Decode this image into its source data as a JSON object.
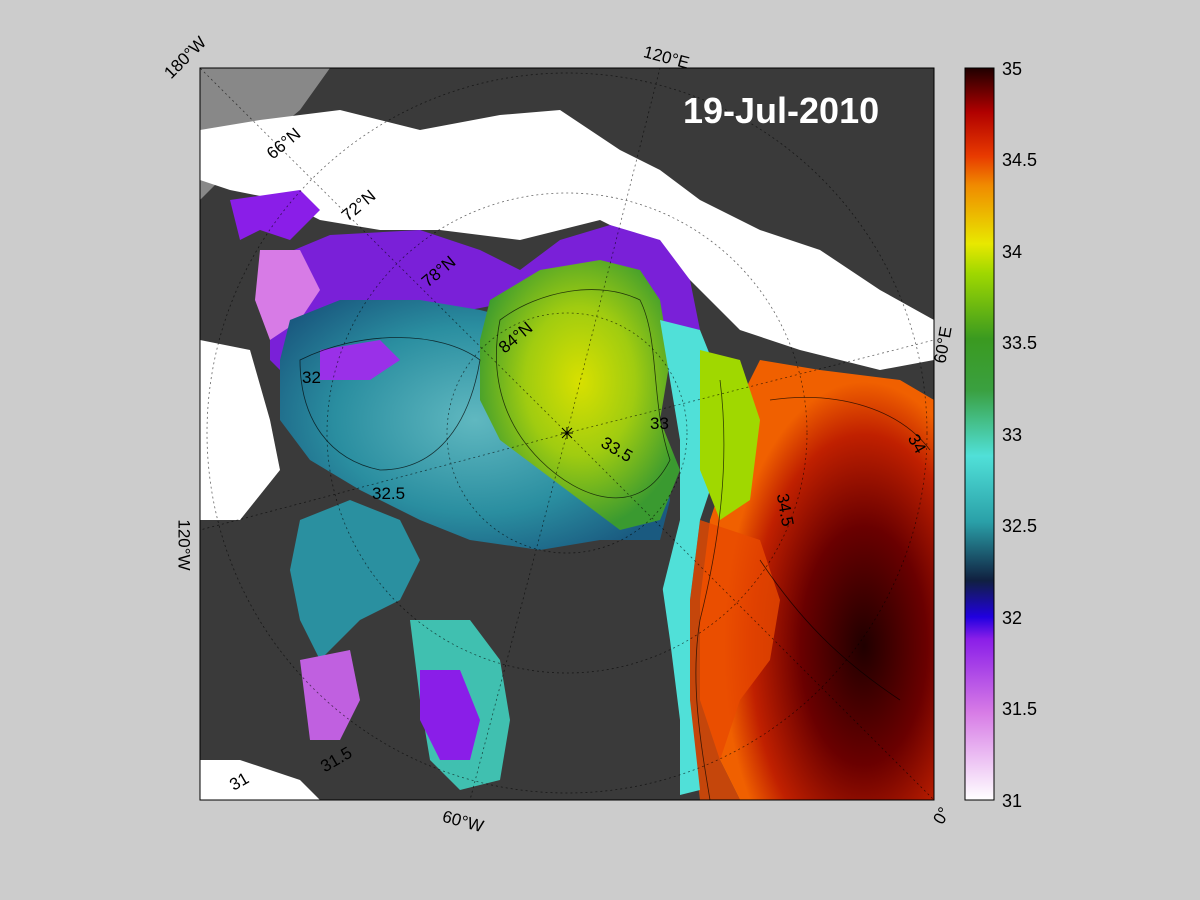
{
  "date_label": "19-Jul-2010",
  "longitude_labels": {
    "top_left": "180°W",
    "top_middle": "120°E",
    "left": "120°W",
    "bottom": "60°W",
    "right": "60°E",
    "bottom_right": "0°"
  },
  "latitude_labels": [
    "66°N",
    "72°N",
    "78°N",
    "84°N"
  ],
  "contour_labels": {
    "c31": "31",
    "c31_5": "31.5",
    "c32": "32",
    "c32_5": "32.5",
    "c33": "33",
    "c33_5": "33.5",
    "c34": "34",
    "c34_5": "34.5"
  },
  "colorbar": {
    "min": 31,
    "max": 35,
    "ticks": [
      "35",
      "34.5",
      "34",
      "33.5",
      "33",
      "32.5",
      "32",
      "31.5",
      "31"
    ],
    "colors": {
      "c31": "#ffffff",
      "c31_5": "#d77be6",
      "c32": "#2000e0",
      "c32_5": "#2aa0a8",
      "c33": "#50e0d8",
      "c33_5": "#3a9a20",
      "c34": "#e8e800",
      "c34_5": "#e83a00",
      "c35": "#200000"
    }
  },
  "colors": {
    "land": "#3a3a3a",
    "ice": "#ffffff",
    "outer_background": "#cccccc"
  }
}
